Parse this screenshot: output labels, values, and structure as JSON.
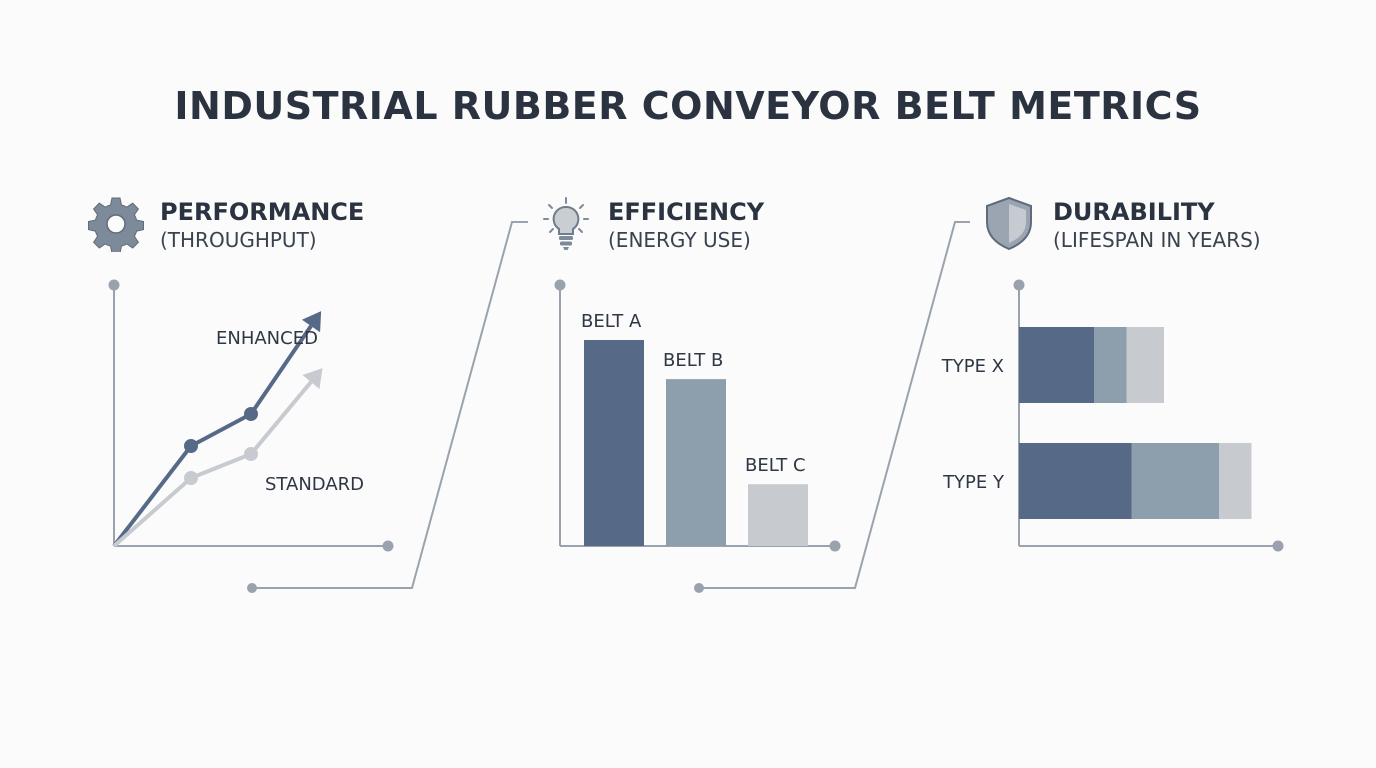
{
  "title": "INDUSTRIAL RUBBER CONVEYOR BELT METRICS",
  "panels": [
    {
      "title": "PERFORMANCE",
      "subtitle": "(THROUGHPUT)",
      "icon": "gear-icon"
    },
    {
      "title": "EFFICIENCY",
      "subtitle": "(ENERGY USE)",
      "icon": "lightbulb-icon"
    },
    {
      "title": "DURABILITY",
      "subtitle": "(LIFESPAN IN YEARS)",
      "icon": "shield-icon"
    }
  ],
  "colors": {
    "dark": "#566a88",
    "mid": "#8d9eac",
    "light": "#c7cbcf",
    "axis": "#9aa3ad",
    "text": "#2f3744"
  },
  "chart_data": [
    {
      "type": "line",
      "title": "PERFORMANCE",
      "subtitle": "(THROUGHPUT)",
      "x": [
        0,
        1,
        2,
        3
      ],
      "series": [
        {
          "name": "ENHANCED",
          "values": [
            0,
            2.5,
            3.3,
            5.5
          ]
        },
        {
          "name": "STANDARD",
          "values": [
            0,
            1.7,
            2.3,
            4.1
          ]
        }
      ],
      "xlim": [
        0,
        4
      ],
      "ylim": [
        0,
        6.5
      ],
      "grid": false
    },
    {
      "type": "bar",
      "title": "EFFICIENCY",
      "subtitle": "(ENERGY USE)",
      "categories": [
        "BELT A",
        "BELT B",
        "BELT C"
      ],
      "values": [
        10,
        8.1,
        3
      ],
      "ylim": [
        0,
        12.5
      ],
      "grid": false
    },
    {
      "type": "bar",
      "orientation": "horizontal",
      "stacked": true,
      "title": "DURABILITY",
      "subtitle": "(LIFESPAN IN YEARS)",
      "categories": [
        "TYPE X",
        "TYPE Y"
      ],
      "series": [
        {
          "values": [
            3,
            4.5
          ]
        },
        {
          "values": [
            1.3,
            3.5
          ]
        },
        {
          "values": [
            1.5,
            1.3
          ]
        }
      ],
      "xlim": [
        0,
        10.5
      ],
      "grid": false
    }
  ]
}
